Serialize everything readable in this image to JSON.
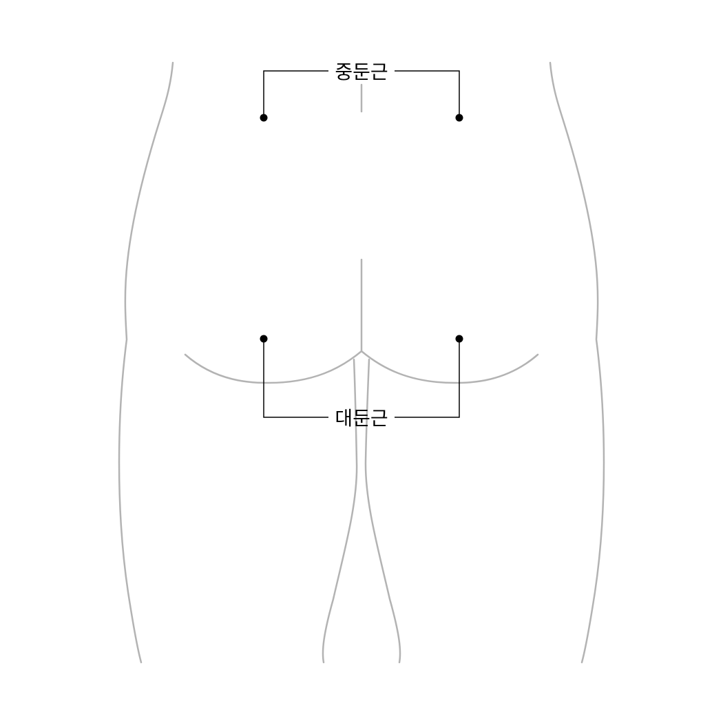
{
  "labels": {
    "upper_muscle": "중둔근",
    "lower_muscle": "대둔근"
  },
  "colors": {
    "outline": "#b3b3b3",
    "leader": "#000000",
    "marker": "#000000",
    "background": "#ffffff"
  }
}
